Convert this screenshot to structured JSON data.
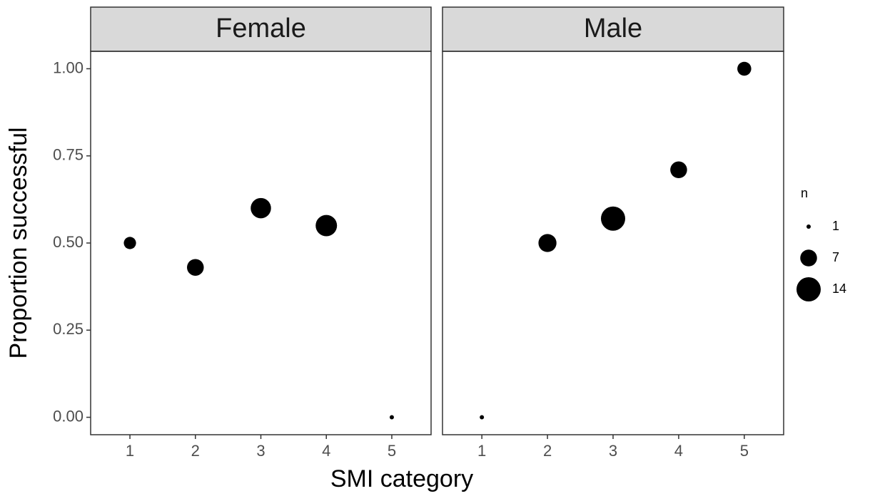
{
  "chart_data": {
    "type": "scatter",
    "xlabel": "SMI category",
    "ylabel": "Proportion successful",
    "xlim": [
      0.4,
      5.6
    ],
    "xticks": [
      1,
      2,
      3,
      4,
      5
    ],
    "ylim": [
      -0.05,
      1.05
    ],
    "yticks": [
      {
        "value": 0,
        "label": "0.00"
      },
      {
        "value": 0.25,
        "label": "0.25"
      },
      {
        "value": 0.5,
        "label": "0.50"
      },
      {
        "value": 0.75,
        "label": "0.75"
      },
      {
        "value": 1,
        "label": "1.00"
      }
    ],
    "color": "#000000",
    "legend": {
      "title": "n",
      "sizes": [
        1,
        7,
        14
      ]
    },
    "facets": [
      {
        "title": "Female",
        "x": [
          1,
          2,
          3,
          4,
          5
        ],
        "values": [
          0.5,
          0.43,
          0.6,
          0.55,
          0
        ],
        "sizes": [
          4,
          7,
          10,
          11,
          1
        ]
      },
      {
        "title": "Male",
        "x": [
          1,
          2,
          3,
          4,
          5
        ],
        "values": [
          0,
          0.5,
          0.57,
          0.71,
          1
        ],
        "sizes": [
          1,
          8,
          14,
          7,
          5
        ]
      }
    ]
  }
}
